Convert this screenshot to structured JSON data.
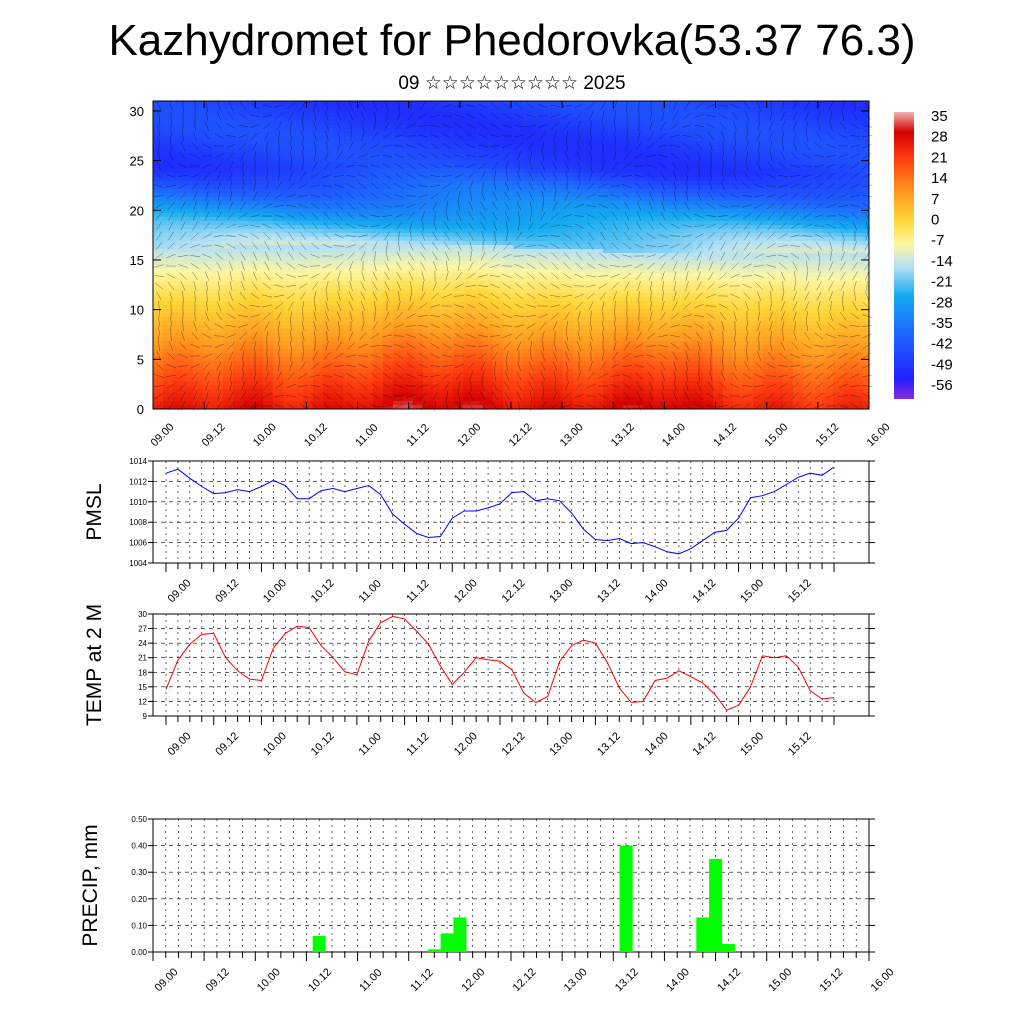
{
  "page": {
    "title": "Kazhydromet for Phedorovka(53.37 76.3)",
    "subtitle": "09 ☆☆☆☆☆☆☆☆☆ 2025"
  },
  "chart_data": [
    {
      "type": "heatmap",
      "title": "",
      "xlabel": "",
      "ylabel": "",
      "x_ticks": [
        "09.00",
        "09.12",
        "10.00",
        "10.12",
        "11.00",
        "11.12",
        "12.00",
        "12.12",
        "13.00",
        "13.12",
        "14.00",
        "14.12",
        "15.00",
        "15.12",
        "16.00"
      ],
      "y_ticks": [
        0,
        5,
        10,
        15,
        20,
        25,
        30
      ],
      "ylim": [
        0,
        31
      ],
      "colorbar_labels": [
        "35",
        "28",
        "21",
        "14",
        "7",
        "0",
        "-7",
        "-14",
        "-21",
        "-28",
        "-35",
        "-42",
        "-49",
        "-56"
      ],
      "colorbar_range": [
        -60,
        38
      ],
      "surface_temperature": [
        25,
        27,
        28,
        25,
        29,
        32,
        31,
        28,
        27,
        29,
        32,
        26,
        24,
        23,
        23
      ],
      "tropopause_height_km": [
        16.3,
        16.2,
        16.4,
        16.3,
        16.5,
        16.6,
        16.7,
        16.3,
        16.1,
        15.8,
        15.6,
        15.8,
        15.9,
        15.8,
        15.7
      ],
      "overlay": "wind barbs"
    },
    {
      "type": "line",
      "title": "",
      "ylabel": "PMSL",
      "color": "#0000ff",
      "x_ticks": [
        "09.00",
        "09.12",
        "10.00",
        "10.12",
        "11.00",
        "11.12",
        "12.00",
        "12.12",
        "13.00",
        "13.12",
        "14.00",
        "14.12",
        "15.00",
        "15.12",
        "16.00"
      ],
      "y_ticks": [
        "1004",
        "1006",
        "1008",
        "1010",
        "1012",
        "1014"
      ],
      "ylim": [
        1004,
        1014
      ],
      "values": [
        1012.8,
        1013.2,
        1012.3,
        1011.5,
        1010.8,
        1010.9,
        1011.2,
        1011,
        1011.5,
        1012.1,
        1011.6,
        1010.3,
        1010.3,
        1011.1,
        1011.3,
        1011,
        1011.3,
        1011.6,
        1010.7,
        1008.8,
        1007.8,
        1006.9,
        1006.5,
        1006.6,
        1008.4,
        1009.1,
        1009.1,
        1009.4,
        1009.8,
        1010.9,
        1011,
        1010.1,
        1010.3,
        1010.1,
        1008.9,
        1007.3,
        1006.3,
        1006.2,
        1006.4,
        1005.9,
        1006,
        1005.6,
        1005.1,
        1004.9,
        1005.4,
        1006.2,
        1007,
        1007.2,
        1008.4,
        1010.4,
        1010.6,
        1011,
        1011.7,
        1012.4,
        1012.8,
        1012.6,
        1013.4
      ]
    },
    {
      "type": "line",
      "title": "",
      "ylabel": "TEMP at 2 M",
      "color": "#ff0000",
      "x_ticks": [
        "09.00",
        "09.12",
        "10.00",
        "10.12",
        "11.00",
        "11.12",
        "12.00",
        "12.12",
        "13.00",
        "13.12",
        "14.00",
        "14.12",
        "15.00",
        "15.12",
        "16.00"
      ],
      "y_ticks": [
        "9",
        "12",
        "15",
        "18",
        "21",
        "24",
        "27",
        "30"
      ],
      "ylim": [
        9,
        30
      ],
      "values": [
        14.5,
        20.5,
        23.8,
        25.8,
        26,
        21,
        18.3,
        16.6,
        16.3,
        23,
        26,
        27.5,
        27.2,
        23.5,
        21,
        18.1,
        17.5,
        24.5,
        28.2,
        29.5,
        29,
        26.5,
        23.8,
        19.3,
        15.5,
        18,
        21,
        20.6,
        20.3,
        18.5,
        13.7,
        11.8,
        13,
        20.2,
        23.5,
        24.6,
        24,
        20,
        14.8,
        11.8,
        12,
        16.3,
        16.8,
        18.3,
        17.1,
        15.8,
        13.5,
        10.2,
        11.2,
        15,
        21.4,
        21,
        21.4,
        19.1,
        14.2,
        12.5,
        12.8
      ]
    },
    {
      "type": "bar",
      "title": "",
      "ylabel": "PRECIP, mm",
      "color": "#00ff00",
      "x_ticks": [
        "09.00",
        "09.12",
        "10.00",
        "10.12",
        "11.00",
        "11.12",
        "12.00",
        "12.12",
        "13.00",
        "13.12",
        "14.00",
        "14.12",
        "15.00",
        "15.12",
        "16.00"
      ],
      "y_ticks": [
        "0.00",
        "0.10",
        "0.20",
        "0.30",
        "0.40",
        "0.50"
      ],
      "ylim": [
        0,
        0.5
      ],
      "bars": [
        {
          "hour": 39,
          "value": 0.06
        },
        {
          "hour": 66,
          "value": 0.01
        },
        {
          "hour": 69,
          "value": 0.07
        },
        {
          "hour": 72,
          "value": 0.13
        },
        {
          "hour": 111,
          "value": 0.4
        },
        {
          "hour": 129,
          "value": 0.13
        },
        {
          "hour": 132,
          "value": 0.35
        },
        {
          "hour": 135,
          "value": 0.03
        }
      ]
    }
  ]
}
